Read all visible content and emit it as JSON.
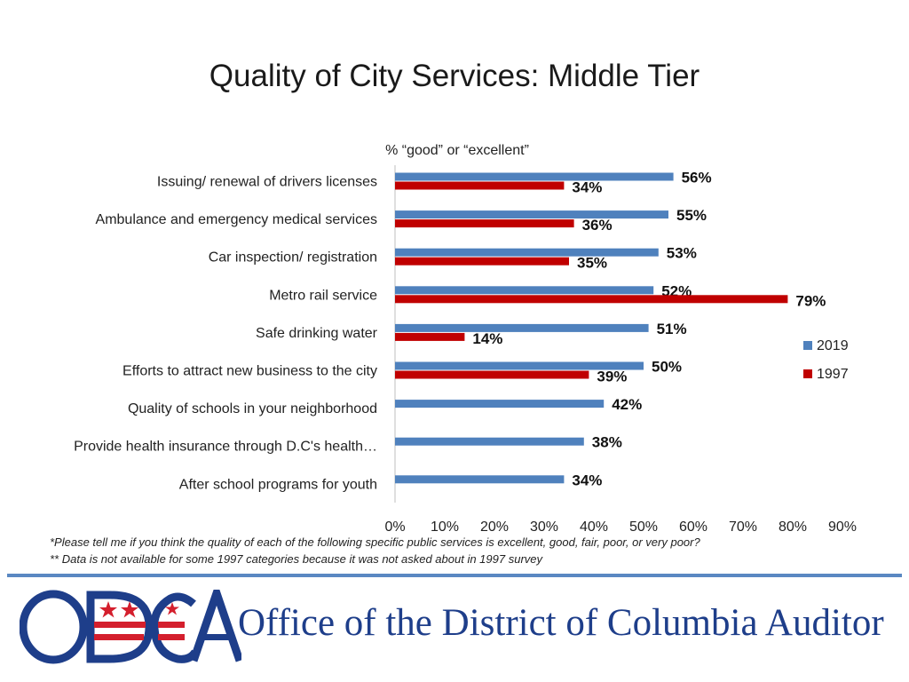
{
  "header": {
    "title": "Quality of City Services: Middle Tier"
  },
  "chart_data": {
    "type": "bar",
    "orientation": "horizontal",
    "subtitle": "% “good” or “excellent”",
    "categories": [
      "Issuing/ renewal of drivers licenses",
      "Ambulance and emergency medical services",
      "Car inspection/ registration",
      "Metro rail service",
      "Safe drinking water",
      "Efforts to attract new business to the city",
      "Quality of schools in your neighborhood",
      "Provide health insurance through D.C's health…",
      "After school programs for youth"
    ],
    "series": [
      {
        "name": "2019",
        "color": "#4f81bd",
        "values": [
          56,
          55,
          53,
          52,
          51,
          50,
          42,
          38,
          34
        ],
        "labels": [
          "56%",
          "55%",
          "53%",
          "52%",
          "51%",
          "50%",
          "42%",
          "38%",
          "34%"
        ]
      },
      {
        "name": "1997",
        "color": "#c00000",
        "values": [
          34,
          36,
          35,
          79,
          14,
          39,
          null,
          null,
          null
        ],
        "labels": [
          "34%",
          "36%",
          "35%",
          "79%",
          "14%",
          "39%",
          null,
          null,
          null
        ]
      }
    ],
    "xlim": [
      0,
      90
    ],
    "xticks": [
      "0%",
      "10%",
      "20%",
      "30%",
      "40%",
      "50%",
      "60%",
      "70%",
      "80%",
      "90%"
    ],
    "legend": {
      "position": "right",
      "entries": [
        "2019",
        "1997"
      ]
    }
  },
  "footnotes": {
    "note1": "*Please tell me if you think the quality of each of the following specific public services is excellent, good, fair, poor, or very poor?",
    "note2": "** Data is not available for some 1997 categories because it was not asked about in 1997 survey"
  },
  "logo": {
    "acronym": "ODCA",
    "name": "Office of the District of Columbia Auditor"
  }
}
